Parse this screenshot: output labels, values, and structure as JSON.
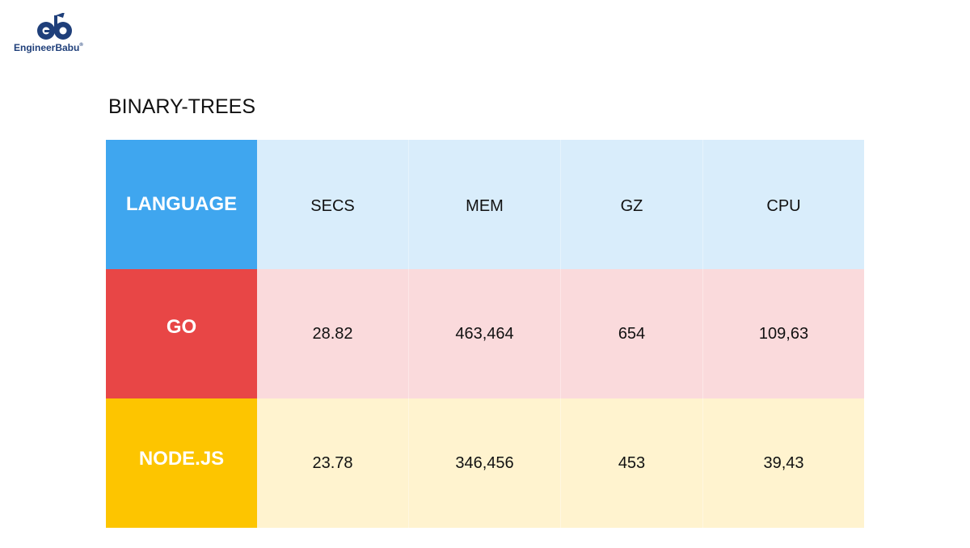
{
  "logo": {
    "text": "EngineerBabu",
    "mark": "®",
    "color": "#1f3f7a"
  },
  "chart_data": {
    "type": "table",
    "title": "BINARY-TREES",
    "columns": [
      "LANGUAGE",
      "SECS",
      "MEM",
      "GZ",
      "CPU"
    ],
    "rows": [
      {
        "language": "GO",
        "secs": "28.82",
        "mem": "463,464",
        "gz": "654",
        "cpu": "109,63",
        "color": "#e84646"
      },
      {
        "language": "NODE.JS",
        "secs": "23.78",
        "mem": "346,456",
        "gz": "453",
        "cpu": "39,43",
        "color": "#fdc500"
      }
    ],
    "header_color": "#3fa6ef"
  }
}
